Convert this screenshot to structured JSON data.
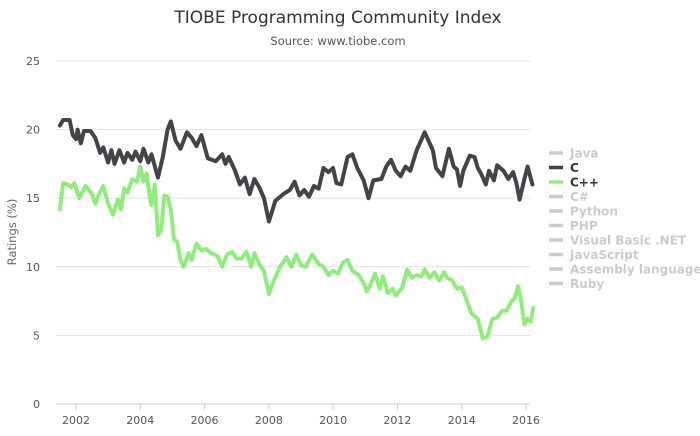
{
  "chart_data": {
    "type": "line",
    "title": "TIOBE Programming Community Index",
    "subtitle": "Source: www.tiobe.com",
    "xlabel": "",
    "ylabel": "Ratings (%)",
    "xlim": [
      2001.4,
      2016.25
    ],
    "ylim": [
      0,
      25
    ],
    "x_ticks": [
      2002,
      2004,
      2006,
      2008,
      2010,
      2012,
      2014,
      2016
    ],
    "x_tick_labels": [
      "2002",
      "2004",
      "2006",
      "2008",
      "2010",
      "2012",
      "2014",
      "2016"
    ],
    "y_ticks": [
      0,
      5,
      10,
      15,
      20,
      25
    ],
    "y_tick_labels": [
      "0",
      "5",
      "10",
      "15",
      "20",
      "25"
    ],
    "grid": "horizontal",
    "legend_placement": "right",
    "legend": [
      {
        "name": "Java",
        "visible": false,
        "color": "#cccccc"
      },
      {
        "name": "C",
        "visible": true,
        "color": "#434348"
      },
      {
        "name": "C++",
        "visible": true,
        "color": "#90ed7d"
      },
      {
        "name": "C#",
        "visible": false,
        "color": "#cccccc"
      },
      {
        "name": "Python",
        "visible": false,
        "color": "#cccccc"
      },
      {
        "name": "PHP",
        "visible": false,
        "color": "#cccccc"
      },
      {
        "name": "Visual Basic .NET",
        "visible": false,
        "color": "#cccccc"
      },
      {
        "name": "JavaScript",
        "visible": false,
        "color": "#cccccc"
      },
      {
        "name": "Assembly language",
        "visible": false,
        "color": "#cccccc"
      },
      {
        "name": "Ruby",
        "visible": false,
        "color": "#cccccc"
      }
    ],
    "legend_colors": {
      "visible_text": "#333333",
      "hidden_text": "#cccccc"
    },
    "series": [
      {
        "name": "C",
        "color": "#434348",
        "x": [
          2001.5,
          2001.6,
          2001.8,
          2001.9,
          2002.0,
          2002.05,
          2002.15,
          2002.25,
          2002.45,
          2002.6,
          2002.75,
          2002.85,
          2003.0,
          2003.1,
          2003.2,
          2003.35,
          2003.5,
          2003.6,
          2003.75,
          2003.85,
          2004.0,
          2004.1,
          2004.25,
          2004.35,
          2004.55,
          2004.7,
          2004.85,
          2004.95,
          2005.1,
          2005.25,
          2005.45,
          2005.6,
          2005.75,
          2005.9,
          2006.1,
          2006.35,
          2006.55,
          2006.65,
          2006.75,
          2006.95,
          2007.1,
          2007.25,
          2007.4,
          2007.55,
          2007.7,
          2007.85,
          2008.0,
          2008.2,
          2008.45,
          2008.65,
          2008.8,
          2008.95,
          2009.1,
          2009.25,
          2009.4,
          2009.55,
          2009.7,
          2009.85,
          2010.0,
          2010.1,
          2010.25,
          2010.45,
          2010.6,
          2010.75,
          2010.95,
          2011.1,
          2011.25,
          2011.5,
          2011.65,
          2011.8,
          2011.95,
          2012.1,
          2012.25,
          2012.4,
          2012.6,
          2012.85,
          2013.1,
          2013.2,
          2013.4,
          2013.6,
          2013.75,
          2013.85,
          2013.95,
          2014.05,
          2014.25,
          2014.4,
          2014.5,
          2014.6,
          2014.75,
          2014.85,
          2015.0,
          2015.1,
          2015.3,
          2015.45,
          2015.6,
          2015.7,
          2015.8,
          2015.95,
          2016.05,
          2016.2
        ],
        "values": [
          20.3,
          20.7,
          20.7,
          19.6,
          19.3,
          20.0,
          19.0,
          19.9,
          19.9,
          19.4,
          18.3,
          18.7,
          17.6,
          18.5,
          17.5,
          18.5,
          17.6,
          18.3,
          17.8,
          18.4,
          17.7,
          18.6,
          17.6,
          18.2,
          16.5,
          18.0,
          20.0,
          20.6,
          19.2,
          18.6,
          19.8,
          19.4,
          18.8,
          19.6,
          17.9,
          17.7,
          18.2,
          17.5,
          18.0,
          17.0,
          16.0,
          16.5,
          15.3,
          16.4,
          15.8,
          15.0,
          13.3,
          14.8,
          15.3,
          15.6,
          16.2,
          15.2,
          15.6,
          15.1,
          15.9,
          15.7,
          17.2,
          16.9,
          17.2,
          16.1,
          16.0,
          18.0,
          18.2,
          17.2,
          16.3,
          15.0,
          16.3,
          16.4,
          17.3,
          17.8,
          17.0,
          16.6,
          17.3,
          17.0,
          18.5,
          19.8,
          18.5,
          17.2,
          16.6,
          18.6,
          17.3,
          17.1,
          15.9,
          17.0,
          18.1,
          18.0,
          17.2,
          16.8,
          16.0,
          17.0,
          16.3,
          17.4,
          17.0,
          16.4,
          16.9,
          16.1,
          14.9,
          16.4,
          17.3,
          16.0
        ]
      },
      {
        "name": "C++",
        "color": "#90ed7d",
        "x": [
          2001.5,
          2001.6,
          2001.75,
          2001.85,
          2001.95,
          2002.1,
          2002.3,
          2002.5,
          2002.6,
          2002.7,
          2002.85,
          2003.0,
          2003.15,
          2003.3,
          2003.4,
          2003.5,
          2003.6,
          2003.75,
          2003.9,
          2004.0,
          2004.1,
          2004.2,
          2004.3,
          2004.35,
          2004.45,
          2004.55,
          2004.65,
          2004.75,
          2004.85,
          2004.95,
          2005.05,
          2005.15,
          2005.25,
          2005.35,
          2005.5,
          2005.6,
          2005.75,
          2005.9,
          2006.05,
          2006.2,
          2006.4,
          2006.55,
          2006.7,
          2006.85,
          2007.0,
          2007.15,
          2007.3,
          2007.45,
          2007.55,
          2007.7,
          2007.85,
          2008.0,
          2008.15,
          2008.35,
          2008.55,
          2008.7,
          2008.85,
          2009.0,
          2009.15,
          2009.35,
          2009.55,
          2009.7,
          2009.85,
          2010.0,
          2010.15,
          2010.3,
          2010.45,
          2010.6,
          2010.8,
          2010.95,
          2011.05,
          2011.2,
          2011.3,
          2011.45,
          2011.55,
          2011.7,
          2011.85,
          2011.95,
          2012.15,
          2012.3,
          2012.45,
          2012.6,
          2012.75,
          2012.85,
          2013.0,
          2013.15,
          2013.3,
          2013.45,
          2013.55,
          2013.7,
          2013.85,
          2014.0,
          2014.15,
          2014.3,
          2014.5,
          2014.65,
          2014.8,
          2014.95,
          2015.1,
          2015.25,
          2015.4,
          2015.55,
          2015.65,
          2015.75,
          2015.85,
          2015.95,
          2016.05,
          2016.15,
          2016.22
        ],
        "values": [
          14.2,
          16.1,
          16.0,
          15.8,
          16.1,
          15.0,
          15.9,
          15.3,
          14.6,
          15.2,
          15.9,
          14.6,
          13.8,
          14.9,
          14.2,
          15.7,
          15.4,
          16.4,
          16.2,
          17.3,
          16.2,
          16.8,
          15.0,
          14.5,
          16.0,
          12.3,
          12.7,
          15.2,
          15.1,
          14.2,
          12.0,
          11.8,
          10.5,
          10.0,
          11.0,
          10.5,
          11.7,
          11.2,
          11.3,
          11.0,
          10.8,
          10.0,
          10.9,
          11.1,
          10.6,
          10.6,
          11.1,
          10.0,
          11.0,
          10.2,
          9.7,
          8.0,
          9.0,
          10.0,
          10.7,
          10.0,
          10.9,
          10.1,
          10.0,
          10.9,
          10.2,
          10.0,
          9.4,
          9.7,
          9.5,
          10.3,
          10.5,
          9.7,
          9.4,
          8.8,
          8.2,
          8.9,
          9.5,
          8.4,
          9.3,
          8.1,
          8.4,
          7.9,
          8.5,
          9.8,
          9.2,
          9.4,
          9.3,
          9.8,
          9.2,
          9.6,
          9.0,
          9.6,
          9.2,
          9.0,
          8.4,
          8.5,
          7.6,
          6.6,
          6.2,
          4.8,
          4.9,
          6.2,
          6.3,
          6.8,
          6.8,
          7.5,
          7.7,
          8.6,
          7.5,
          5.8,
          6.2,
          6.0,
          7.0
        ]
      }
    ]
  }
}
